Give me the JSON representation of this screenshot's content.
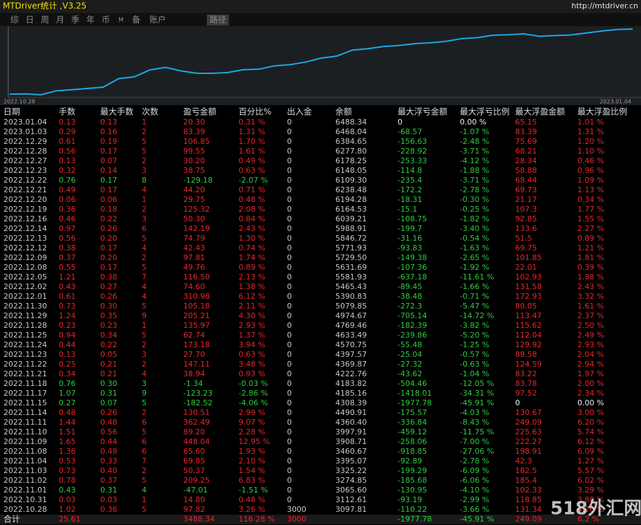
{
  "header": {
    "title": "MTDriver统计 ,V3.25",
    "url": "http://mtdriver.cn"
  },
  "tabs": [
    "综",
    "日",
    "周",
    "月",
    "季",
    "年",
    "币",
    "M",
    "备",
    "账户",
    "路径"
  ],
  "chart": {
    "start_label": "2022.10.28",
    "end_label": "2023.01.04"
  },
  "table": {
    "columns": [
      "日期",
      "手数",
      "最大手数",
      "次数",
      "盈亏金额",
      "百分比%",
      "出入金",
      "余额",
      "最大浮亏金额",
      "最大浮亏比例",
      "最大浮盈金额",
      "最大浮盈比例"
    ],
    "rows": [
      [
        "2023.01.04",
        "0.13",
        "0.13",
        "1",
        "20.30",
        "0.31 %",
        "0",
        "6488.34",
        "0",
        "0.00 %",
        "65.15",
        "1.01 %"
      ],
      [
        "2023.01.03",
        "0.29",
        "0.16",
        "2",
        "83.39",
        "1.31 %",
        "0",
        "6468.04",
        "-68.57",
        "-1.07 %",
        "83.39",
        "1.31 %"
      ],
      [
        "2022.12.29",
        "0.61",
        "0.19",
        "5",
        "106.85",
        "1.70 %",
        "0",
        "6384.65",
        "-156.63",
        "-2.48 %",
        "75.69",
        "1.20 %"
      ],
      [
        "2022.12.28",
        "0.56",
        "0.17",
        "5",
        "99.55",
        "1.61 %",
        "0",
        "6277.80",
        "-228.92",
        "-3.71 %",
        "68.21",
        "1.10 %"
      ],
      [
        "2022.12.27",
        "0.13",
        "0.07",
        "2",
        "30.20",
        "0.49 %",
        "0",
        "6178.25",
        "-253.33",
        "-4.12 %",
        "28.34",
        "0.46 %"
      ],
      [
        "2022.12.23",
        "0.32",
        "0.14",
        "3",
        "38.75",
        "0.63 %",
        "0",
        "6148.05",
        "-114.8",
        "-1.88 %",
        "58.88",
        "0.96 %"
      ],
      [
        "2022.12.22",
        "0.76",
        "0.17",
        "8",
        "-129.18",
        "-2.07 %",
        "0",
        "6109.30",
        "-235.4",
        "-3.71 %",
        "68.44",
        "1.09 %"
      ],
      [
        "2022.12.21",
        "0.49",
        "0.17",
        "4",
        "44.20",
        "0.71 %",
        "0",
        "6238.48",
        "-172.2",
        "-2.78 %",
        "69.73",
        "1.13 %"
      ],
      [
        "2022.12.20",
        "0.06",
        "0.06",
        "1",
        "29.75",
        "0.48 %",
        "0",
        "6194.28",
        "-18.31",
        "-0.30 %",
        "21.17",
        "0.34 %"
      ],
      [
        "2022.12.19",
        "0.36",
        "0.18",
        "2",
        "125.32",
        "2.08 %",
        "0",
        "6164.53",
        "-15.1",
        "-0.25 %",
        "107.3",
        "1.77 %"
      ],
      [
        "2022.12.16",
        "0.46",
        "0.22",
        "3",
        "50.30",
        "0.84 %",
        "0",
        "6039.21",
        "-108.75",
        "-1.82 %",
        "92.85",
        "1.55 %"
      ],
      [
        "2022.12.14",
        "0.97",
        "0.26",
        "6",
        "142.19",
        "2.43 %",
        "0",
        "5988.91",
        "-199.7",
        "-3.40 %",
        "133.6",
        "2.27 %"
      ],
      [
        "2022.12.13",
        "0.56",
        "0.20",
        "5",
        "74.79",
        "1.30 %",
        "0",
        "5846.72",
        "-31.16",
        "-0.54 %",
        "51.5",
        "0.89 %"
      ],
      [
        "2022.12.12",
        "0.38",
        "0.17",
        "4",
        "42.43",
        "0.74 %",
        "0",
        "5771.93",
        "-93.83",
        "-1.63 %",
        "69.75",
        "1.21 %"
      ],
      [
        "2022.12.09",
        "0.37",
        "0.20",
        "2",
        "97.81",
        "1.74 %",
        "0",
        "5729.50",
        "-149.38",
        "-2.65 %",
        "101.85",
        "1.81 %"
      ],
      [
        "2022.12.08",
        "0.55",
        "0.17",
        "5",
        "49.76",
        "0.89 %",
        "0",
        "5631.69",
        "-107.36",
        "-1.92 %",
        "22.01",
        "0.39 %"
      ],
      [
        "2022.12.05",
        "1.21",
        "0.38",
        "7",
        "116.50",
        "2.13 %",
        "0",
        "5581.93",
        "-637.18",
        "-11.61 %",
        "102.93",
        "1.88 %"
      ],
      [
        "2022.12.02",
        "0.43",
        "0.27",
        "4",
        "74.60",
        "1.38 %",
        "0",
        "5465.43",
        "-89.45",
        "-1.66 %",
        "131.58",
        "2.43 %"
      ],
      [
        "2022.12.01",
        "0.61",
        "0.26",
        "4",
        "310.98",
        "6.12 %",
        "0",
        "5390.83",
        "-38.48",
        "-0.71 %",
        "172.93",
        "3.32 %"
      ],
      [
        "2022.11.30",
        "0.73",
        "0.30",
        "5",
        "105.18",
        "2.11 %",
        "0",
        "5079.85",
        "-272.3",
        "-5.47 %",
        "80.05",
        "1.61 %"
      ],
      [
        "2022.11.29",
        "1.24",
        "0.35",
        "9",
        "205.21",
        "4.30 %",
        "0",
        "4974.67",
        "-705.14",
        "-14.72 %",
        "113.47",
        "2.37 %"
      ],
      [
        "2022.11.28",
        "0.23",
        "0.23",
        "1",
        "135.97",
        "2.93 %",
        "0",
        "4769.46",
        "-182.39",
        "-3.82 %",
        "115.62",
        "2.50 %"
      ],
      [
        "2022.11.25",
        "0.94",
        "0.34",
        "5",
        "62.74",
        "1.37 %",
        "0",
        "4633.49",
        "-239.86",
        "-5.20 %",
        "112.04",
        "2.49 %"
      ],
      [
        "2022.11.24",
        "0.44",
        "0.22",
        "2",
        "173.18",
        "3.94 %",
        "0",
        "4570.75",
        "-55.48",
        "-1.25 %",
        "129.92",
        "2.93 %"
      ],
      [
        "2022.11.23",
        "0.13",
        "0.05",
        "3",
        "27.70",
        "0.63 %",
        "0",
        "4397.57",
        "-25.04",
        "-0.57 %",
        "89.58",
        "2.04 %"
      ],
      [
        "2022.11.22",
        "0.25",
        "0.21",
        "2",
        "147.11",
        "3.48 %",
        "0",
        "4369.87",
        "-27.32",
        "-0.63 %",
        "124.59",
        "2.94 %"
      ],
      [
        "2022.11.21",
        "0.34",
        "0.21",
        "4",
        "38.94",
        "0.93 %",
        "0",
        "4222.76",
        "-43.62",
        "-1.04 %",
        "83.22",
        "1.97 %"
      ],
      [
        "2022.11.18",
        "0.76",
        "0.30",
        "3",
        "-1.34",
        "-0.03 %",
        "0",
        "4183.82",
        "-504.46",
        "-12.05 %",
        "83.78",
        "2.00 %"
      ],
      [
        "2022.11.17",
        "1.07",
        "0.31",
        "9",
        "-123.23",
        "-2.86 %",
        "0",
        "4185.16",
        "-1418.01",
        "-34.31 %",
        "97.52",
        "2.34 %"
      ],
      [
        "2022.11.15",
        "0.27",
        "0.07",
        "5",
        "-182.52",
        "-4.06 %",
        "0",
        "4308.39",
        "-1977.78",
        "-45.91 %",
        "0",
        "0.00 %"
      ],
      [
        "2022.11.14",
        "0.48",
        "0.26",
        "2",
        "130.51",
        "2.99 %",
        "0",
        "4490.91",
        "-175.57",
        "-4.03 %",
        "130.67",
        "3.00 %"
      ],
      [
        "2022.11.11",
        "1.44",
        "0.48",
        "6",
        "362.49",
        "9.07 %",
        "0",
        "4360.40",
        "-336.84",
        "-8.43 %",
        "249.09",
        "6.20 %"
      ],
      [
        "2022.11.10",
        "1.51",
        "0.56",
        "5",
        "89.20",
        "2.28 %",
        "0",
        "3997.91",
        "-459.12",
        "-11.75 %",
        "225.63",
        "5.74 %"
      ],
      [
        "2022.11.09",
        "1.65",
        "0.44",
        "6",
        "448.04",
        "12.95 %",
        "0",
        "3908.71",
        "-258.06",
        "-7.00 %",
        "222.27",
        "6.12 %"
      ],
      [
        "2022.11.08",
        "1.36",
        "0.49",
        "6",
        "65.60",
        "1.93 %",
        "0",
        "3460.67",
        "-918.85",
        "-27.06 %",
        "198.91",
        "6.09 %"
      ],
      [
        "2022.11.04",
        "0.53",
        "0.33",
        "7",
        "69.85",
        "2.10 %",
        "0",
        "3395.07",
        "-92.89",
        "-2.78 %",
        "42.3",
        "1.27 %"
      ],
      [
        "2022.11.03",
        "0.73",
        "0.40",
        "2",
        "50.37",
        "1.54 %",
        "0",
        "3325.22",
        "-199.29",
        "-6.09 %",
        "182.5",
        "5.57 %"
      ],
      [
        "2022.11.02",
        "0.78",
        "0.37",
        "5",
        "209.25",
        "6.83 %",
        "0",
        "3274.85",
        "-185.68",
        "-6.06 %",
        "185.4",
        "6.02 %"
      ],
      [
        "2022.11.01",
        "0.43",
        "0.31",
        "4",
        "-47.01",
        "-1.51 %",
        "0",
        "3065.60",
        "-130.95",
        "-4.10 %",
        "102.33",
        "3.29 %"
      ],
      [
        "2022.10.31",
        "0.03",
        "0.03",
        "1",
        "14.80",
        "0.48 %",
        "0",
        "3112.61",
        "-93.19",
        "-2.99 %",
        "118.85",
        "3.80 %"
      ],
      [
        "2022.10.28",
        "1.02",
        "0.36",
        "5",
        "97.82",
        "3.26 %",
        "3000",
        "3097.81",
        "-110.22",
        "-3.66 %",
        "131.34",
        "4.26 %"
      ]
    ],
    "total": {
      "label": "合计",
      "lots": "25.61",
      "pnl": "3488.34",
      "percent": "116.28 %",
      "deposit": "3000",
      "max_loss": "-1977.78",
      "max_loss_pct": "-45.91 %",
      "max_profit": "249.09",
      "max_profit_pct": "6.2 %"
    }
  },
  "watermark": "518外汇网"
}
